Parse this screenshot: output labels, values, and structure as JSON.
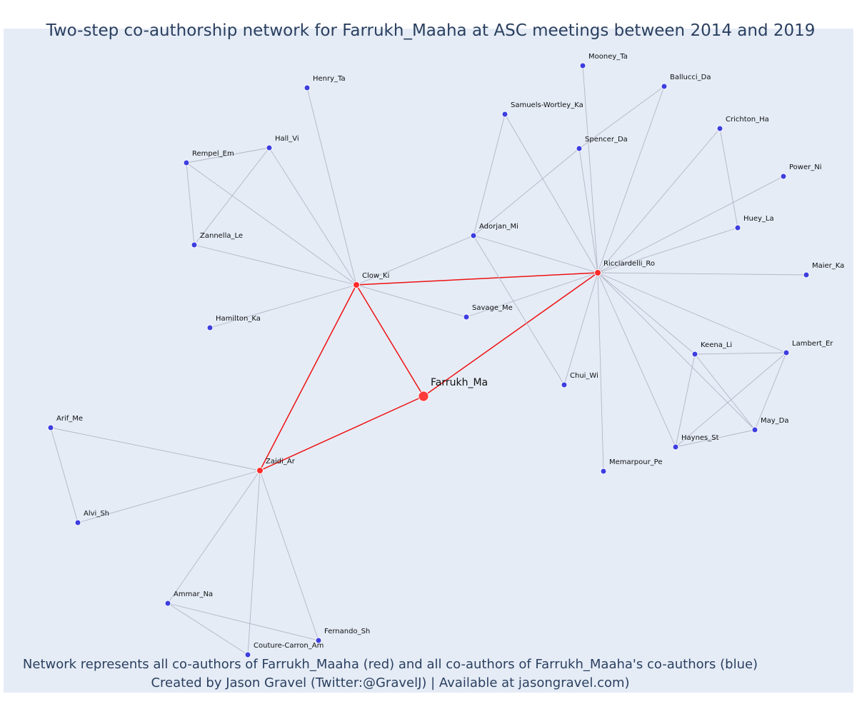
{
  "title": "Two-step co-authorship network for Farrukh_Maaha at ASC meetings between 2014 and 2019",
  "caption": {
    "line1": "Network represents all co-authors of Farrukh_Maaha (red) and all co-authors of Farrukh_Maaha's co-authors (blue)",
    "line2": "Created by Jason Gravel (Twitter:@GravelJ) | Available at jasongravel.com)"
  },
  "colors": {
    "ego": "#ff3a3a",
    "first_step": "#ff2a2a",
    "second_step": "#3d3ee0",
    "ego_edge": "#ee1111",
    "other_edge": "#b4b6c6",
    "background": "#e5ecf6",
    "title_text": "#2a3f5f"
  },
  "nodes": [
    {
      "id": "Farrukh_Ma",
      "role": "ego"
    },
    {
      "id": "Clow_Ki",
      "role": "coauthor"
    },
    {
      "id": "Ricciardelli_Ro",
      "role": "coauthor"
    },
    {
      "id": "Zaidi_Ar",
      "role": "coauthor"
    },
    {
      "id": "Henry_Ta",
      "role": "second"
    },
    {
      "id": "Hall_Vi",
      "role": "second"
    },
    {
      "id": "Rempel_Em",
      "role": "second"
    },
    {
      "id": "Zannella_Le",
      "role": "second"
    },
    {
      "id": "Hamilton_Ka",
      "role": "second"
    },
    {
      "id": "Savage_Me",
      "role": "second"
    },
    {
      "id": "Adorjan_Mi",
      "role": "second"
    },
    {
      "id": "Samuels-Wortley_Ka",
      "role": "second"
    },
    {
      "id": "Mooney_Ta",
      "role": "second"
    },
    {
      "id": "Ballucci_Da",
      "role": "second"
    },
    {
      "id": "Spencer_Da",
      "role": "second"
    },
    {
      "id": "Crichton_Ha",
      "role": "second"
    },
    {
      "id": "Power_Ni",
      "role": "second"
    },
    {
      "id": "Huey_La",
      "role": "second"
    },
    {
      "id": "Maier_Ka",
      "role": "second"
    },
    {
      "id": "Keena_Li",
      "role": "second"
    },
    {
      "id": "Lambert_Er",
      "role": "second"
    },
    {
      "id": "May_Da",
      "role": "second"
    },
    {
      "id": "Haynes_St",
      "role": "second"
    },
    {
      "id": "Chui_Wi",
      "role": "second"
    },
    {
      "id": "Memarpour_Pe",
      "role": "second"
    },
    {
      "id": "Arif_Me",
      "role": "second"
    },
    {
      "id": "Alvi_Sh",
      "role": "second"
    },
    {
      "id": "Ammar_Na",
      "role": "second"
    },
    {
      "id": "Fernando_Sh",
      "role": "second"
    },
    {
      "id": "Couture-Carron_Am",
      "role": "second"
    }
  ],
  "edges": [
    [
      "Farrukh_Ma",
      "Clow_Ki"
    ],
    [
      "Farrukh_Ma",
      "Ricciardelli_Ro"
    ],
    [
      "Farrukh_Ma",
      "Zaidi_Ar"
    ],
    [
      "Clow_Ki",
      "Ricciardelli_Ro"
    ],
    [
      "Clow_Ki",
      "Zaidi_Ar"
    ],
    [
      "Clow_Ki",
      "Henry_Ta"
    ],
    [
      "Clow_Ki",
      "Hall_Vi"
    ],
    [
      "Clow_Ki",
      "Rempel_Em"
    ],
    [
      "Clow_Ki",
      "Zannella_Le"
    ],
    [
      "Clow_Ki",
      "Hamilton_Ka"
    ],
    [
      "Clow_Ki",
      "Savage_Me"
    ],
    [
      "Clow_Ki",
      "Adorjan_Mi"
    ],
    [
      "Rempel_Em",
      "Hall_Vi"
    ],
    [
      "Rempel_Em",
      "Zannella_Le"
    ],
    [
      "Hall_Vi",
      "Zannella_Le"
    ],
    [
      "Ricciardelli_Ro",
      "Adorjan_Mi"
    ],
    [
      "Ricciardelli_Ro",
      "Savage_Me"
    ],
    [
      "Ricciardelli_Ro",
      "Samuels-Wortley_Ka"
    ],
    [
      "Ricciardelli_Ro",
      "Mooney_Ta"
    ],
    [
      "Ricciardelli_Ro",
      "Ballucci_Da"
    ],
    [
      "Ricciardelli_Ro",
      "Spencer_Da"
    ],
    [
      "Ricciardelli_Ro",
      "Crichton_Ha"
    ],
    [
      "Ricciardelli_Ro",
      "Power_Ni"
    ],
    [
      "Ricciardelli_Ro",
      "Huey_La"
    ],
    [
      "Ricciardelli_Ro",
      "Maier_Ka"
    ],
    [
      "Ricciardelli_Ro",
      "Keena_Li"
    ],
    [
      "Ricciardelli_Ro",
      "Lambert_Er"
    ],
    [
      "Ricciardelli_Ro",
      "May_Da"
    ],
    [
      "Ricciardelli_Ro",
      "Haynes_St"
    ],
    [
      "Ricciardelli_Ro",
      "Chui_Wi"
    ],
    [
      "Ricciardelli_Ro",
      "Memarpour_Pe"
    ],
    [
      "Adorjan_Mi",
      "Samuels-Wortley_Ka"
    ],
    [
      "Adorjan_Mi",
      "Spencer_Da"
    ],
    [
      "Adorjan_Mi",
      "Chui_Wi"
    ],
    [
      "Spencer_Da",
      "Ballucci_Da"
    ],
    [
      "Crichton_Ha",
      "Huey_La"
    ],
    [
      "Keena_Li",
      "Lambert_Er"
    ],
    [
      "Keena_Li",
      "May_Da"
    ],
    [
      "Keena_Li",
      "Haynes_St"
    ],
    [
      "Lambert_Er",
      "Haynes_St"
    ],
    [
      "Lambert_Er",
      "May_Da"
    ],
    [
      "Haynes_St",
      "May_Da"
    ],
    [
      "Zaidi_Ar",
      "Arif_Me"
    ],
    [
      "Zaidi_Ar",
      "Alvi_Sh"
    ],
    [
      "Zaidi_Ar",
      "Ammar_Na"
    ],
    [
      "Zaidi_Ar",
      "Fernando_Sh"
    ],
    [
      "Zaidi_Ar",
      "Couture-Carron_Am"
    ],
    [
      "Arif_Me",
      "Alvi_Sh"
    ],
    [
      "Ammar_Na",
      "Fernando_Sh"
    ],
    [
      "Ammar_Na",
      "Couture-Carron_Am"
    ]
  ]
}
